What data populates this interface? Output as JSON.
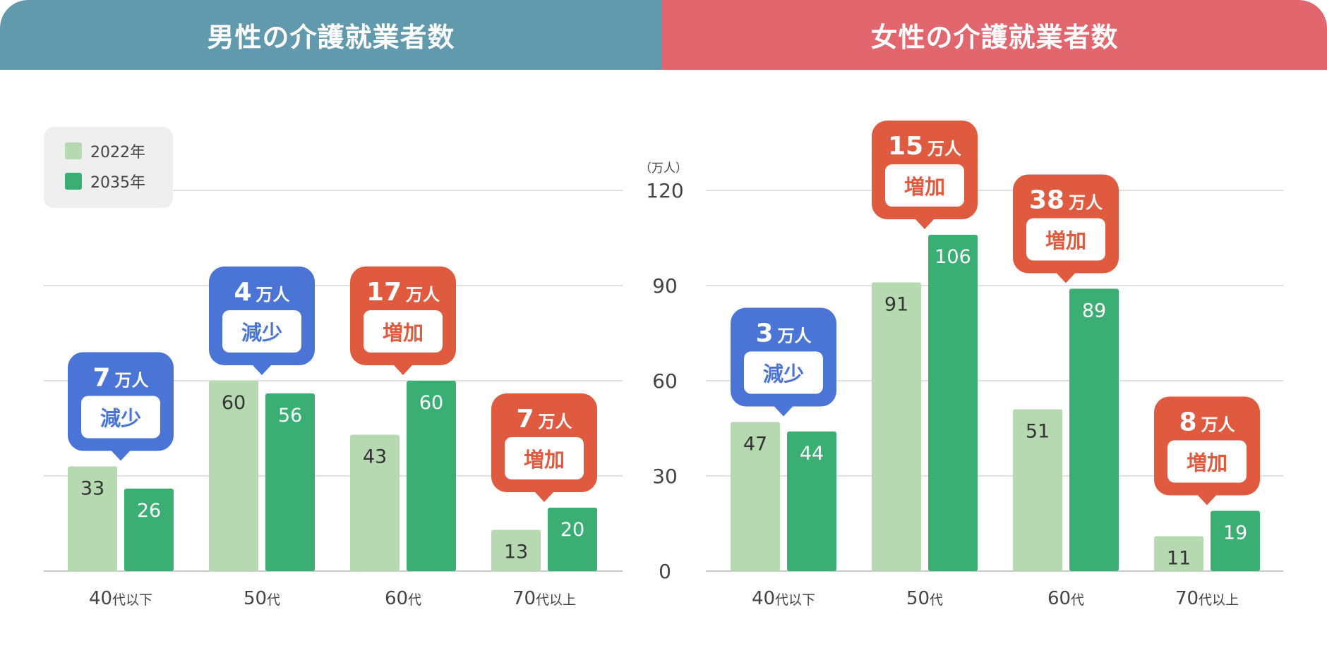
{
  "colors": {
    "male_header": "#6199ad",
    "female_header": "#e1666d",
    "bar_2022": "#b6d9b1",
    "bar_2035": "#3bae74",
    "decrease": "#4a75d6",
    "increase": "#e05a40",
    "grid": "#d7d7d7",
    "text": "#444444"
  },
  "legend": {
    "items": [
      {
        "label": "2022年",
        "color": "#b6d9b1"
      },
      {
        "label": "2035年",
        "color": "#3bae74"
      }
    ]
  },
  "axis": {
    "unit": "（万人）"
  },
  "chart_data": [
    {
      "type": "bar",
      "title": "男性の介護就業者数",
      "categories": [
        {
          "main": "40",
          "suffix": "代以下"
        },
        {
          "main": "50",
          "suffix": "代"
        },
        {
          "main": "60",
          "suffix": "代"
        },
        {
          "main": "70",
          "suffix": "代以上"
        }
      ],
      "series": [
        {
          "name": "2022年",
          "values": [
            33,
            60,
            43,
            13
          ]
        },
        {
          "name": "2035年",
          "values": [
            26,
            56,
            60,
            20
          ]
        }
      ],
      "ylim": [
        0,
        120
      ],
      "yticks": [
        0,
        30,
        60,
        90,
        120
      ],
      "ylabel": "",
      "grid": true,
      "legend_position": "top-left",
      "annotations": [
        {
          "amount": "7",
          "unit": "万人",
          "label": "減少",
          "kind": "decrease"
        },
        {
          "amount": "4",
          "unit": "万人",
          "label": "減少",
          "kind": "decrease"
        },
        {
          "amount": "17",
          "unit": "万人",
          "label": "増加",
          "kind": "increase"
        },
        {
          "amount": "7",
          "unit": "万人",
          "label": "増加",
          "kind": "increase"
        }
      ]
    },
    {
      "type": "bar",
      "title": "女性の介護就業者数",
      "categories": [
        {
          "main": "40",
          "suffix": "代以下"
        },
        {
          "main": "50",
          "suffix": "代"
        },
        {
          "main": "60",
          "suffix": "代"
        },
        {
          "main": "70",
          "suffix": "代以上"
        }
      ],
      "series": [
        {
          "name": "2022年",
          "values": [
            47,
            91,
            51,
            11
          ]
        },
        {
          "name": "2035年",
          "values": [
            44,
            106,
            89,
            19
          ]
        }
      ],
      "ylim": [
        0,
        120
      ],
      "yticks": [
        0,
        30,
        60,
        90,
        120
      ],
      "ylabel": "（万人）",
      "grid": true,
      "annotations": [
        {
          "amount": "3",
          "unit": "万人",
          "label": "減少",
          "kind": "decrease"
        },
        {
          "amount": "15",
          "unit": "万人",
          "label": "増加",
          "kind": "increase"
        },
        {
          "amount": "38",
          "unit": "万人",
          "label": "増加",
          "kind": "increase"
        },
        {
          "amount": "8",
          "unit": "万人",
          "label": "増加",
          "kind": "increase"
        }
      ]
    }
  ]
}
